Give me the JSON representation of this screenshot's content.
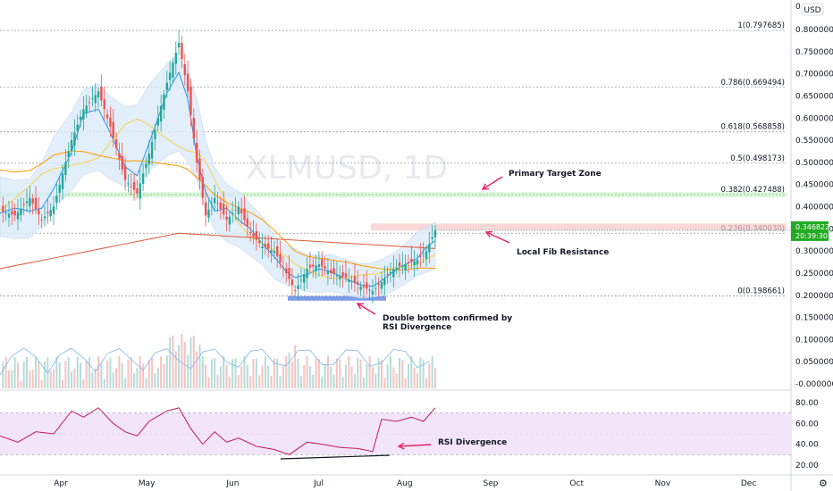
{
  "chart_data": {
    "type": "candlestick",
    "symbol_watermark": "XLMUSD, 1D",
    "currency": "USD",
    "price_axis": {
      "top_label": "0.8",
      "ticks": [
        "0.800000",
        "0.750000",
        "0.700000",
        "0.650000",
        "0.600000",
        "0.550000",
        "0.500000",
        "0.450000",
        "0.400000",
        "0.350000",
        "0.300000",
        "0.250000",
        "0.200000",
        "0.150000",
        "0.100000",
        "0.050000",
        "-0.000000"
      ],
      "tick_values": [
        0.8,
        0.75,
        0.7,
        0.65,
        0.6,
        0.55,
        0.5,
        0.45,
        0.4,
        0.35,
        0.3,
        0.25,
        0.2,
        0.15,
        0.1,
        0.05,
        0.0
      ],
      "range": [
        -0.01,
        0.82
      ]
    },
    "rsi_axis": {
      "ticks": [
        "80.00",
        "60.00",
        "40.00",
        "20.00"
      ],
      "tick_values": [
        80,
        60,
        40,
        20
      ],
      "band": [
        30,
        70
      ]
    },
    "x_axis": {
      "labels": [
        "Apr",
        "May",
        "Jun",
        "Jul",
        "Aug",
        "Sep",
        "Oct",
        "Nov",
        "Dec"
      ]
    },
    "fib_levels": [
      {
        "label": "1(0.797685)",
        "value": 0.797685
      },
      {
        "label": "0.786(0.669494)",
        "value": 0.669494
      },
      {
        "label": "0.618(0.568858)",
        "value": 0.568858
      },
      {
        "label": "0.5(0.498173)",
        "value": 0.498173
      },
      {
        "label": "0.382(0.427488)",
        "value": 0.427488
      },
      {
        "label": "0.236(0.340030)",
        "value": 0.34003
      },
      {
        "label": "0(0.198661)",
        "value": 0.198661
      }
    ],
    "last_price": {
      "price": "0.346822",
      "countdown": "20:39:30"
    },
    "annotations": {
      "target": "Primary Target Zone",
      "fib_resistance": "Local Fib Resistance",
      "double_bottom_1": "Double bottom confirmed by",
      "double_bottom_2": "RSI Divergence",
      "rsi_div": "RSI Divergence"
    },
    "price_path": [
      {
        "t": 0,
        "v": 0.39
      },
      {
        "t": 5,
        "v": 0.38
      },
      {
        "t": 10,
        "v": 0.42
      },
      {
        "t": 14,
        "v": 0.37
      },
      {
        "t": 18,
        "v": 0.4
      },
      {
        "t": 24,
        "v": 0.55
      },
      {
        "t": 28,
        "v": 0.62
      },
      {
        "t": 33,
        "v": 0.66
      },
      {
        "t": 37,
        "v": 0.58
      },
      {
        "t": 42,
        "v": 0.46
      },
      {
        "t": 46,
        "v": 0.43
      },
      {
        "t": 50,
        "v": 0.52
      },
      {
        "t": 56,
        "v": 0.68
      },
      {
        "t": 60,
        "v": 0.77
      },
      {
        "t": 63,
        "v": 0.66
      },
      {
        "t": 66,
        "v": 0.5
      },
      {
        "t": 69,
        "v": 0.38
      },
      {
        "t": 72,
        "v": 0.42
      },
      {
        "t": 76,
        "v": 0.37
      },
      {
        "t": 80,
        "v": 0.4
      },
      {
        "t": 84,
        "v": 0.34
      },
      {
        "t": 88,
        "v": 0.31
      },
      {
        "t": 92,
        "v": 0.3
      },
      {
        "t": 96,
        "v": 0.25
      },
      {
        "t": 99,
        "v": 0.21
      },
      {
        "t": 103,
        "v": 0.26
      },
      {
        "t": 107,
        "v": 0.27
      },
      {
        "t": 111,
        "v": 0.25
      },
      {
        "t": 116,
        "v": 0.24
      },
      {
        "t": 121,
        "v": 0.22
      },
      {
        "t": 125,
        "v": 0.21
      },
      {
        "t": 128,
        "v": 0.23
      },
      {
        "t": 132,
        "v": 0.26
      },
      {
        "t": 136,
        "v": 0.27
      },
      {
        "t": 140,
        "v": 0.28
      },
      {
        "t": 143,
        "v": 0.3
      },
      {
        "t": 146,
        "v": 0.3468
      }
    ],
    "rsi_path": [
      {
        "t": 0,
        "v": 48
      },
      {
        "t": 6,
        "v": 42
      },
      {
        "t": 12,
        "v": 52
      },
      {
        "t": 18,
        "v": 50
      },
      {
        "t": 24,
        "v": 72
      },
      {
        "t": 28,
        "v": 66
      },
      {
        "t": 33,
        "v": 75
      },
      {
        "t": 38,
        "v": 60
      },
      {
        "t": 42,
        "v": 52
      },
      {
        "t": 46,
        "v": 48
      },
      {
        "t": 50,
        "v": 62
      },
      {
        "t": 56,
        "v": 72
      },
      {
        "t": 60,
        "v": 75
      },
      {
        "t": 64,
        "v": 55
      },
      {
        "t": 68,
        "v": 40
      },
      {
        "t": 72,
        "v": 52
      },
      {
        "t": 76,
        "v": 42
      },
      {
        "t": 80,
        "v": 46
      },
      {
        "t": 86,
        "v": 38
      },
      {
        "t": 92,
        "v": 35
      },
      {
        "t": 97,
        "v": 30
      },
      {
        "t": 103,
        "v": 42
      },
      {
        "t": 108,
        "v": 40
      },
      {
        "t": 114,
        "v": 37
      },
      {
        "t": 120,
        "v": 36
      },
      {
        "t": 125,
        "v": 33
      },
      {
        "t": 128,
        "v": 64
      },
      {
        "t": 133,
        "v": 62
      },
      {
        "t": 138,
        "v": 66
      },
      {
        "t": 142,
        "v": 62
      },
      {
        "t": 146,
        "v": 75
      }
    ]
  }
}
